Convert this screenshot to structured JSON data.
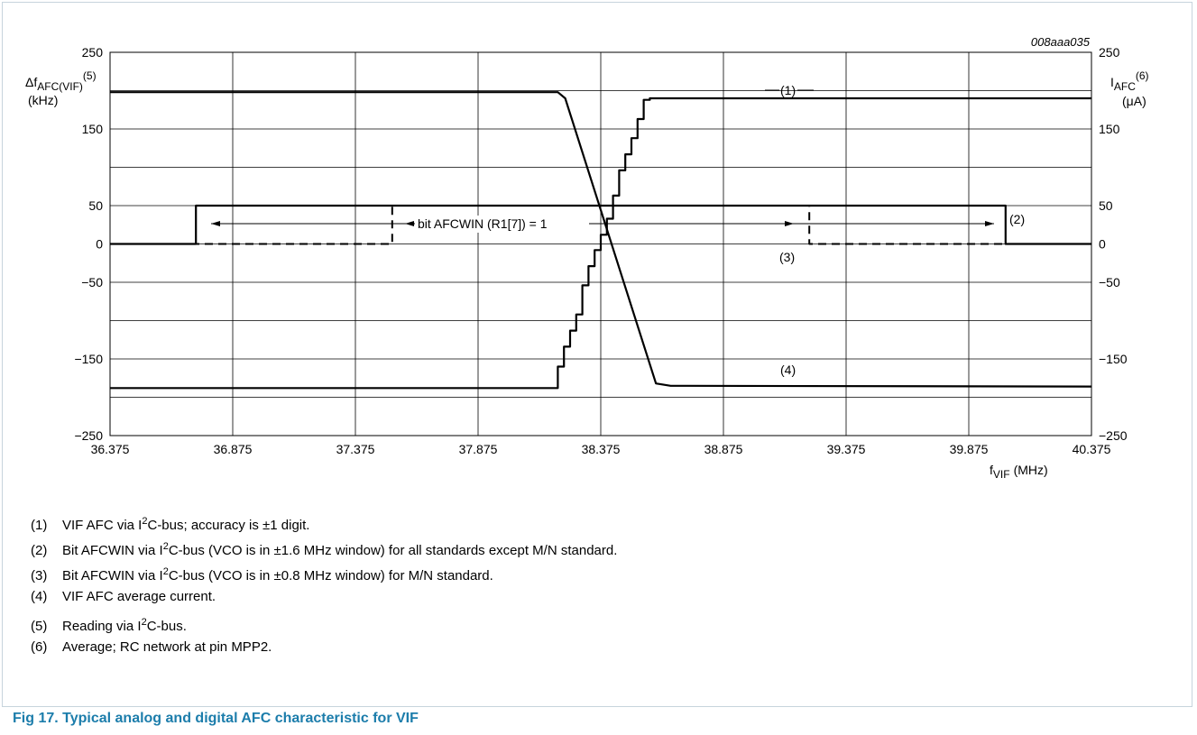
{
  "figure_id": "008aaa035",
  "chart_data": {
    "type": "line",
    "x_ticks": [
      "36.375",
      "36.875",
      "37.375",
      "37.875",
      "38.375",
      "38.875",
      "39.375",
      "39.875",
      "40.375"
    ],
    "x_range": [
      36.375,
      40.375
    ],
    "y_left_ticks": [
      "250",
      "150",
      "50",
      "0",
      "−50",
      "−150",
      "−250"
    ],
    "y_right_ticks": [
      "250",
      "150",
      "50",
      "0",
      "−50",
      "−150",
      "−250"
    ],
    "y_range": [
      -250,
      250
    ],
    "y_grid": [
      200,
      150,
      100,
      50,
      0,
      -50,
      -100,
      -150,
      -200
    ],
    "x_grid": [
      36.875,
      37.375,
      37.875,
      38.375,
      38.875,
      39.375,
      39.875
    ],
    "axis_labels": {
      "y_left_main": "Δf",
      "y_left_sub": "AFC(VIF)",
      "y_left_sup": "(5)",
      "y_left_unit": "(kHz)",
      "y_right_main": "I",
      "y_right_sub": "AFC",
      "y_right_sup": "(6)",
      "y_right_unit": "(μA)",
      "x_main": "f",
      "x_sub": "VIF",
      "x_unit": "(MHz)"
    },
    "series": [
      {
        "label": "(1)",
        "style": "solid",
        "points": [
          [
            36.375,
            -188
          ],
          [
            38.2,
            -188
          ],
          [
            38.2,
            -160
          ],
          [
            38.225,
            -160
          ],
          [
            38.225,
            -134
          ],
          [
            38.25,
            -134
          ],
          [
            38.25,
            -113
          ],
          [
            38.275,
            -113
          ],
          [
            38.275,
            -92
          ],
          [
            38.3,
            -92
          ],
          [
            38.3,
            -54
          ],
          [
            38.325,
            -54
          ],
          [
            38.325,
            -29
          ],
          [
            38.35,
            -29
          ],
          [
            38.35,
            -8
          ],
          [
            38.375,
            -8
          ],
          [
            38.375,
            12
          ],
          [
            38.4,
            12
          ],
          [
            38.4,
            33
          ],
          [
            38.425,
            33
          ],
          [
            38.425,
            63
          ],
          [
            38.45,
            63
          ],
          [
            38.45,
            96
          ],
          [
            38.475,
            96
          ],
          [
            38.475,
            117
          ],
          [
            38.5,
            117
          ],
          [
            38.5,
            138
          ],
          [
            38.525,
            138
          ],
          [
            38.525,
            163
          ],
          [
            38.55,
            163
          ],
          [
            38.55,
            188
          ],
          [
            38.575,
            188
          ],
          [
            38.575,
            190
          ],
          [
            40.375,
            190
          ]
        ]
      },
      {
        "label": "(2)",
        "style": "solid",
        "points": [
          [
            36.375,
            0
          ],
          [
            36.725,
            0
          ],
          [
            36.725,
            50
          ],
          [
            40.025,
            50
          ],
          [
            40.025,
            0
          ],
          [
            40.375,
            0
          ]
        ]
      },
      {
        "label": "(3)",
        "style": "dashed",
        "points": [
          [
            36.375,
            0
          ],
          [
            37.525,
            0
          ],
          [
            37.525,
            50
          ],
          [
            39.225,
            50
          ],
          [
            39.225,
            0
          ],
          [
            40.375,
            0
          ]
        ]
      },
      {
        "label": "(4)",
        "style": "solid",
        "points": [
          [
            36.375,
            198
          ],
          [
            38.2,
            198
          ],
          [
            38.23,
            190
          ],
          [
            38.6,
            -182
          ],
          [
            38.66,
            -185
          ],
          [
            40.375,
            -186
          ]
        ]
      }
    ],
    "annotations": {
      "window_arrow_text": "bit AFCWIN (R1[7]) = 1",
      "label_1": "(1)",
      "label_2": "(2)",
      "label_3": "(3)",
      "label_4": "(4)"
    }
  },
  "notes": [
    {
      "num": "(1)",
      "before": "VIF AFC via I",
      "sup": "2",
      "after": "C-bus; accuracy is ±1 digit."
    },
    {
      "num": "(2)",
      "before": "Bit AFCWIN via I",
      "sup": "2",
      "after": "C-bus (VCO is in ±1.6 MHz window) for all standards except M/N standard."
    },
    {
      "num": "(3)",
      "before": "Bit AFCWIN via I",
      "sup": "2",
      "after": "C-bus (VCO is in ±0.8 MHz window) for M/N standard."
    },
    {
      "num": "(4)",
      "before": "VIF AFC average current.",
      "sup": "",
      "after": ""
    },
    {
      "num": "(5)",
      "before": "Reading via I",
      "sup": "2",
      "after": "C-bus."
    },
    {
      "num": "(6)",
      "before": "Average; RC network at pin MPP2.",
      "sup": "",
      "after": ""
    }
  ],
  "caption": "Fig 17.  Typical analog and digital AFC characteristic for VIF"
}
